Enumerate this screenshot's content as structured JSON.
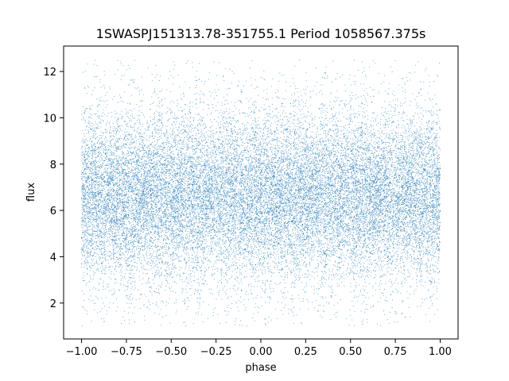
{
  "chart_data": {
    "type": "scatter",
    "title": "1SWASPJ151313.78-351755.1 Period 1058567.375s",
    "xlabel": "phase",
    "ylabel": "flux",
    "xlim": [
      -1.1,
      1.1
    ],
    "ylim": [
      0.45,
      13.1
    ],
    "x_ticks": [
      -1.0,
      -0.75,
      -0.5,
      -0.25,
      0.0,
      0.25,
      0.5,
      0.75,
      1.0
    ],
    "x_tick_labels": [
      "−1.00",
      "−0.75",
      "−0.50",
      "−0.25",
      "0.00",
      "0.25",
      "0.50",
      "0.75",
      "1.00"
    ],
    "y_ticks": [
      2,
      4,
      6,
      8,
      10,
      12
    ],
    "y_tick_labels": [
      "2",
      "4",
      "6",
      "8",
      "10",
      "12"
    ],
    "grid": false,
    "legend": "none",
    "point_color": "#1f77b4",
    "x_range": [
      -1.0,
      1.0
    ],
    "y_range": [
      1.0,
      12.5
    ],
    "typical_flux": 6.6,
    "spread": 1.3,
    "point_count": 25000
  }
}
